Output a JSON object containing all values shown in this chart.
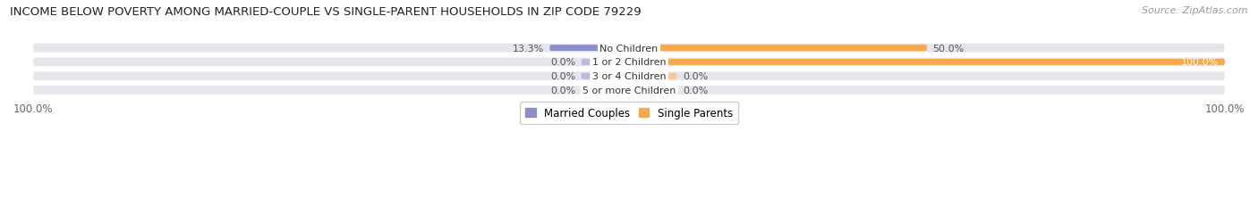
{
  "title": "INCOME BELOW POVERTY AMONG MARRIED-COUPLE VS SINGLE-PARENT HOUSEHOLDS IN ZIP CODE 79229",
  "source": "Source: ZipAtlas.com",
  "categories": [
    "No Children",
    "1 or 2 Children",
    "3 or 4 Children",
    "5 or more Children"
  ],
  "married_values": [
    13.3,
    0.0,
    0.0,
    0.0
  ],
  "single_values": [
    50.0,
    100.0,
    0.0,
    0.0
  ],
  "married_color": "#8b8fc8",
  "single_color": "#f5a84e",
  "married_color_light": "#b8bbdd",
  "single_color_light": "#f8c990",
  "bar_bg_color": "#e5e5ec",
  "title_fontsize": 9.5,
  "source_fontsize": 8,
  "label_fontsize": 8,
  "category_fontsize": 8,
  "legend_fontsize": 8.5,
  "axis_label_fontsize": 8.5,
  "stub_size": 8.0,
  "note_0pct_left": "0.0%",
  "note_0pct_right": "0.0%"
}
